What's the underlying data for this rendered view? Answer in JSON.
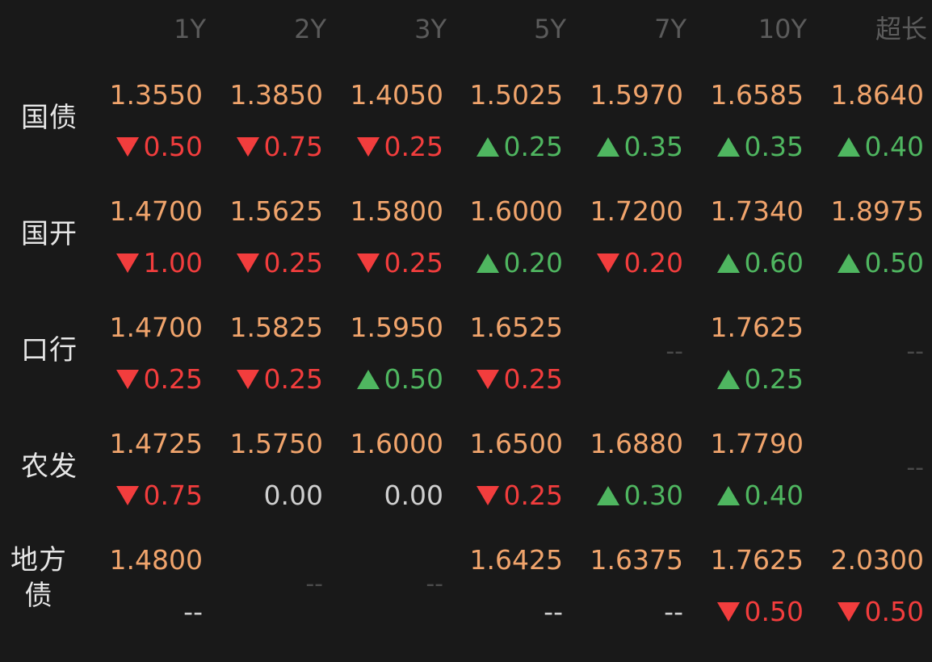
{
  "columns": [
    "1Y",
    "2Y",
    "3Y",
    "5Y",
    "7Y",
    "10Y",
    "超长"
  ],
  "rows": [
    {
      "label": "国债",
      "cells": [
        {
          "price": "1.3550",
          "change": "0.50",
          "dir": "down"
        },
        {
          "price": "1.3850",
          "change": "0.75",
          "dir": "down"
        },
        {
          "price": "1.4050",
          "change": "0.25",
          "dir": "down"
        },
        {
          "price": "1.5025",
          "change": "0.25",
          "dir": "up"
        },
        {
          "price": "1.5970",
          "change": "0.35",
          "dir": "up"
        },
        {
          "price": "1.6585",
          "change": "0.35",
          "dir": "up"
        },
        {
          "price": "1.8640",
          "change": "0.40",
          "dir": "up"
        }
      ]
    },
    {
      "label": "国开",
      "cells": [
        {
          "price": "1.4700",
          "change": "1.00",
          "dir": "down"
        },
        {
          "price": "1.5625",
          "change": "0.25",
          "dir": "down"
        },
        {
          "price": "1.5800",
          "change": "0.25",
          "dir": "down"
        },
        {
          "price": "1.6000",
          "change": "0.20",
          "dir": "up"
        },
        {
          "price": "1.7200",
          "change": "0.20",
          "dir": "down"
        },
        {
          "price": "1.7340",
          "change": "0.60",
          "dir": "up"
        },
        {
          "price": "1.8975",
          "change": "0.50",
          "dir": "up"
        }
      ]
    },
    {
      "label": "口行",
      "cells": [
        {
          "price": "1.4700",
          "change": "0.25",
          "dir": "down"
        },
        {
          "price": "1.5825",
          "change": "0.25",
          "dir": "down"
        },
        {
          "price": "1.5950",
          "change": "0.50",
          "dir": "up"
        },
        {
          "price": "1.6525",
          "change": "0.25",
          "dir": "down"
        },
        {
          "empty": "--"
        },
        {
          "price": "1.7625",
          "change": "0.25",
          "dir": "up"
        },
        {
          "empty": "--"
        }
      ]
    },
    {
      "label": "农发",
      "cells": [
        {
          "price": "1.4725",
          "change": "0.75",
          "dir": "down"
        },
        {
          "price": "1.5750",
          "change": "0.00",
          "dir": "flat"
        },
        {
          "price": "1.6000",
          "change": "0.00",
          "dir": "flat"
        },
        {
          "price": "1.6500",
          "change": "0.25",
          "dir": "down"
        },
        {
          "price": "1.6880",
          "change": "0.30",
          "dir": "up"
        },
        {
          "price": "1.7790",
          "change": "0.40",
          "dir": "up"
        },
        {
          "empty": "--"
        }
      ]
    },
    {
      "label": "地方债",
      "label_lines": [
        "地方",
        "债"
      ],
      "cells": [
        {
          "price": "1.4800",
          "change": "--",
          "dir": "dash"
        },
        {
          "empty": "--"
        },
        {
          "empty": "--"
        },
        {
          "price": "1.6425",
          "change": "--",
          "dir": "dash"
        },
        {
          "price": "1.6375",
          "change": "--",
          "dir": "dash"
        },
        {
          "price": "1.7625",
          "change": "0.50",
          "dir": "down"
        },
        {
          "price": "2.0300",
          "change": "0.50",
          "dir": "down"
        }
      ]
    }
  ]
}
